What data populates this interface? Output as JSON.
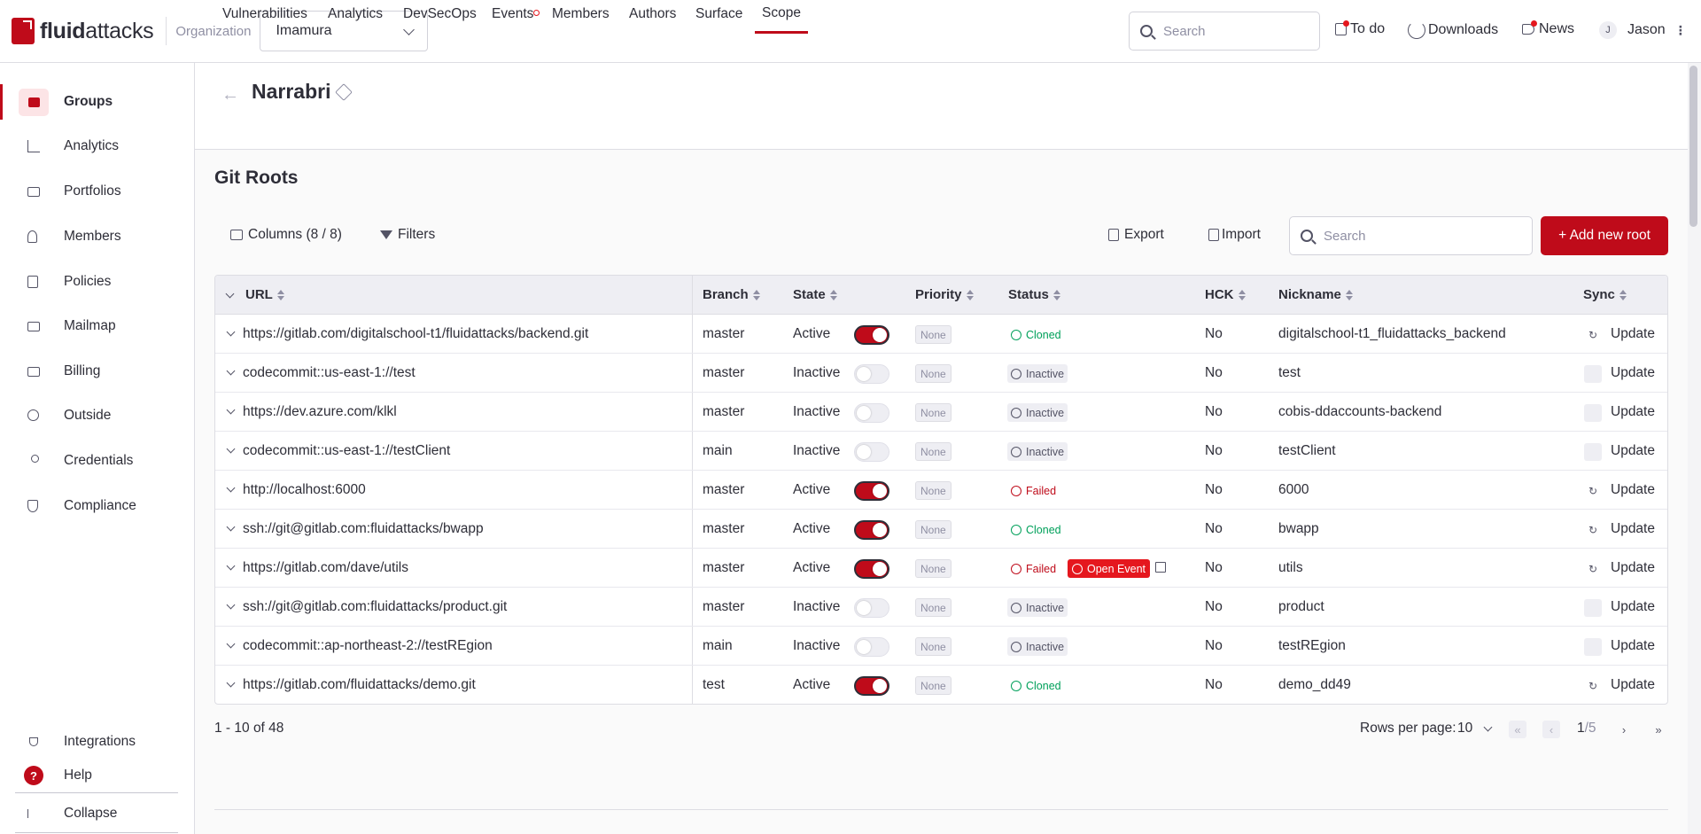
{
  "topbar": {
    "logo_text_a": "fluid",
    "logo_text_b": "attacks",
    "org_label": "Organization",
    "org_value": "Imamura",
    "search_placeholder": "Search",
    "todo": "To do",
    "downloads": "Downloads",
    "news": "News",
    "user_initial": "J",
    "user_name": "Jason"
  },
  "sidebar": {
    "items": [
      {
        "label": "Groups",
        "icon": "folder-icon"
      },
      {
        "label": "Analytics",
        "icon": "bar-chart-icon"
      },
      {
        "label": "Portfolios",
        "icon": "briefcase-icon"
      },
      {
        "label": "Members",
        "icon": "user-plus-icon"
      },
      {
        "label": "Policies",
        "icon": "policy-icon"
      },
      {
        "label": "Mailmap",
        "icon": "mail-icon"
      },
      {
        "label": "Billing",
        "icon": "credit-card-icon"
      },
      {
        "label": "Outside",
        "icon": "outside-icon"
      },
      {
        "label": "Credentials",
        "icon": "key-icon"
      },
      {
        "label": "Compliance",
        "icon": "shield-check-icon"
      }
    ],
    "integrations": "Integrations",
    "help": "Help",
    "help_icon_glyph": "?",
    "collapse": "Collapse"
  },
  "group": {
    "title": "Narrabri",
    "tabs": [
      "Vulnerabilities",
      "Analytics",
      "DevSecOps",
      "Events",
      "Members",
      "Authors",
      "Surface",
      "Scope"
    ],
    "active_tab": "Scope"
  },
  "section": {
    "title": "Git Roots",
    "columns_btn": "Columns (8 / 8)",
    "filters_btn": "Filters",
    "export_btn": "Export",
    "import_btn": "Import",
    "search_placeholder": "Search",
    "add_btn": "+ Add new root"
  },
  "table": {
    "headers": [
      "URL",
      "Branch",
      "State",
      "Priority",
      "Status",
      "HCK",
      "Nickname",
      "Sync"
    ],
    "rows": [
      {
        "url": "https://gitlab.com/digitalschool-t1/fluidattacks/backend.git",
        "branch": "master",
        "state": "Active",
        "on": true,
        "priority": "None",
        "status": "Cloned",
        "hck": "No",
        "nickname": "digitalschool-t1_fluidattacks_backend",
        "sync": "Update"
      },
      {
        "url": "codecommit::us-east-1://test",
        "branch": "master",
        "state": "Inactive",
        "on": false,
        "priority": "None",
        "status": "Inactive",
        "hck": "No",
        "nickname": "test",
        "sync": "Update"
      },
      {
        "url": "https://dev.azure.com/klkl",
        "branch": "master",
        "state": "Inactive",
        "on": false,
        "priority": "None",
        "status": "Inactive",
        "hck": "No",
        "nickname": "cobis-ddaccounts-backend",
        "sync": "Update"
      },
      {
        "url": "codecommit::us-east-1://testClient",
        "branch": "main",
        "state": "Inactive",
        "on": false,
        "priority": "None",
        "status": "Inactive",
        "hck": "No",
        "nickname": "testClient",
        "sync": "Update"
      },
      {
        "url": "http://localhost:6000",
        "branch": "master",
        "state": "Active",
        "on": true,
        "priority": "None",
        "status": "Failed",
        "hck": "No",
        "nickname": "6000",
        "sync": "Update"
      },
      {
        "url": "ssh://git@gitlab.com:fluidattacks/bwapp",
        "branch": "master",
        "state": "Active",
        "on": true,
        "priority": "None",
        "status": "Cloned",
        "hck": "No",
        "nickname": "bwapp",
        "sync": "Update"
      },
      {
        "url": "https://gitlab.com/dave/utils",
        "branch": "master",
        "state": "Active",
        "on": true,
        "priority": "None",
        "status": "Failed",
        "event": "Open Event",
        "hck": "No",
        "nickname": "utils",
        "sync": "Update"
      },
      {
        "url": "ssh://git@gitlab.com:fluidattacks/product.git",
        "branch": "master",
        "state": "Inactive",
        "on": false,
        "priority": "None",
        "status": "Inactive",
        "hck": "No",
        "nickname": "product",
        "sync": "Update"
      },
      {
        "url": "codecommit::ap-northeast-2://testREgion",
        "branch": "main",
        "state": "Inactive",
        "on": false,
        "priority": "None",
        "status": "Inactive",
        "hck": "No",
        "nickname": "testREgion",
        "sync": "Update"
      },
      {
        "url": "https://gitlab.com/fluidattacks/demo.git",
        "branch": "test",
        "state": "Active",
        "on": true,
        "priority": "None",
        "status": "Cloned",
        "hck": "No",
        "nickname": "demo_dd49",
        "sync": "Update"
      }
    ]
  },
  "pagination": {
    "range": "1 - 10 of 48",
    "rows_per_page_label": "Rows per page:",
    "rows_per_page": "10",
    "page": "1",
    "total_pages": "/5"
  },
  "colors": {
    "accent": "#bf0b1a",
    "cloned": "#00a05a",
    "failed": "#bf0b1a"
  }
}
